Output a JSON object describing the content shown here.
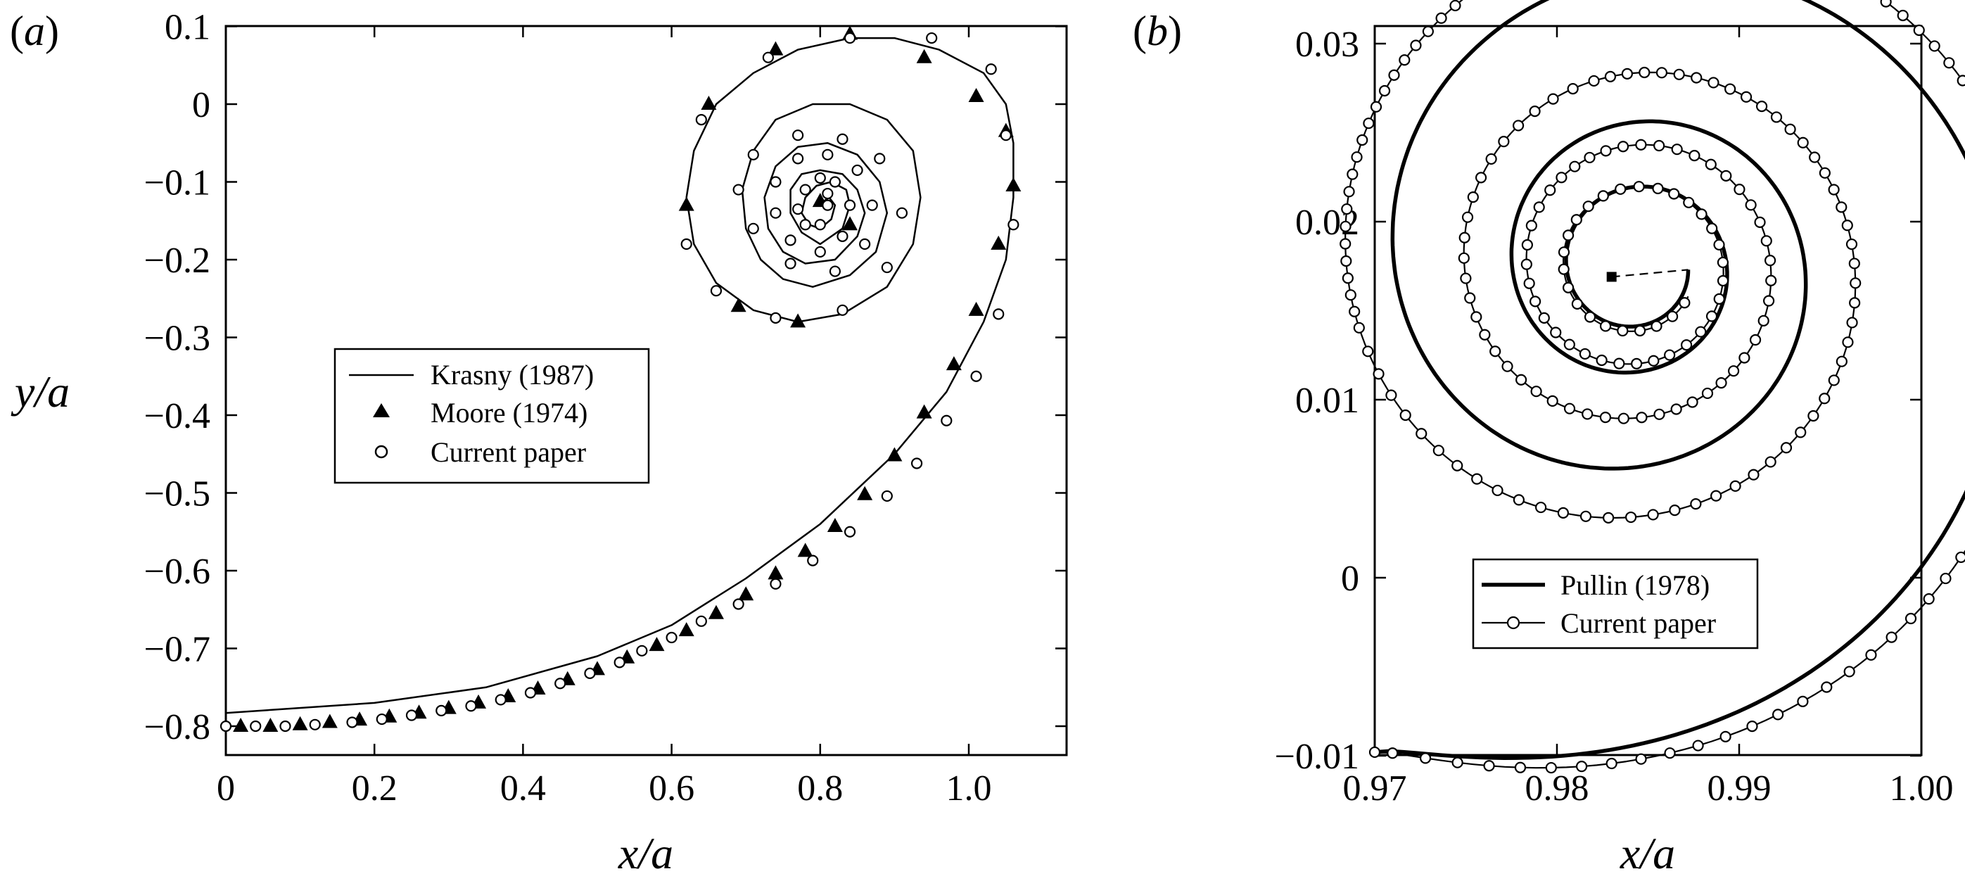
{
  "chart_data": [
    {
      "panel": "(a)",
      "type": "line",
      "xlabel": "x/a",
      "ylabel": "y/a",
      "xlim": [
        0,
        1.1
      ],
      "ylim": [
        -0.85,
        0.1
      ],
      "xticks": [
        0,
        0.2,
        0.4,
        0.6,
        0.8,
        1.0
      ],
      "xtick_labels": [
        "0",
        "0.2",
        "0.4",
        "0.6",
        "0.8",
        "1.0"
      ],
      "yticks": [
        0.1,
        0,
        -0.1,
        -0.2,
        -0.3,
        -0.4,
        -0.5,
        -0.6,
        -0.7,
        -0.8
      ],
      "ytick_labels": [
        "0.1",
        "0",
        "−0.1",
        "−0.2",
        "−0.3",
        "−0.4",
        "−0.5",
        "−0.6",
        "−0.7",
        "−0.8"
      ],
      "legend": {
        "location": "center-left",
        "entries": [
          "Krasny (1987)",
          "Moore (1974)",
          "Current paper"
        ]
      },
      "series": [
        {
          "name": "Krasny (1987)",
          "style": "line",
          "x": [
            0,
            0.2,
            0.35,
            0.5,
            0.6,
            0.7,
            0.8,
            0.9,
            0.97,
            1.02,
            1.05,
            1.06,
            1.06,
            1.05,
            1.02,
            0.96,
            0.9,
            0.84,
            0.77,
            0.71,
            0.66,
            0.63,
            0.62,
            0.63,
            0.66,
            0.71,
            0.77,
            0.83,
            0.89,
            0.925,
            0.935,
            0.925,
            0.89,
            0.84,
            0.79,
            0.74,
            0.71,
            0.695,
            0.7,
            0.72,
            0.75,
            0.79,
            0.84,
            0.875,
            0.89,
            0.88,
            0.85,
            0.81,
            0.77,
            0.74,
            0.725,
            0.73,
            0.75,
            0.78,
            0.82,
            0.85,
            0.86,
            0.85,
            0.83,
            0.8,
            0.775,
            0.76,
            0.76,
            0.775,
            0.8,
            0.83,
            0.84,
            0.835,
            0.815,
            0.795,
            0.78,
            0.775,
            0.785,
            0.8,
            0.815,
            0.82,
            0.812,
            0.8
          ],
          "y": [
            -0.783,
            -0.77,
            -0.75,
            -0.71,
            -0.67,
            -0.61,
            -0.54,
            -0.45,
            -0.37,
            -0.28,
            -0.2,
            -0.12,
            -0.05,
            0.0,
            0.04,
            0.07,
            0.085,
            0.085,
            0.07,
            0.04,
            0.0,
            -0.06,
            -0.12,
            -0.18,
            -0.23,
            -0.265,
            -0.28,
            -0.27,
            -0.235,
            -0.18,
            -0.12,
            -0.06,
            -0.02,
            0.0,
            0.0,
            -0.02,
            -0.06,
            -0.11,
            -0.16,
            -0.2,
            -0.225,
            -0.235,
            -0.22,
            -0.19,
            -0.14,
            -0.1,
            -0.065,
            -0.05,
            -0.055,
            -0.08,
            -0.12,
            -0.16,
            -0.19,
            -0.205,
            -0.2,
            -0.17,
            -0.14,
            -0.11,
            -0.09,
            -0.085,
            -0.09,
            -0.11,
            -0.14,
            -0.165,
            -0.18,
            -0.16,
            -0.13,
            -0.11,
            -0.1,
            -0.105,
            -0.12,
            -0.14,
            -0.155,
            -0.16,
            -0.148,
            -0.13,
            -0.12,
            -0.128
          ]
        },
        {
          "name": "Moore (1974)",
          "style": "triangle",
          "x": [
            0.02,
            0.06,
            0.1,
            0.14,
            0.18,
            0.22,
            0.26,
            0.3,
            0.34,
            0.38,
            0.42,
            0.46,
            0.5,
            0.54,
            0.58,
            0.62,
            0.66,
            0.7,
            0.74,
            0.78,
            0.82,
            0.86,
            0.9,
            0.94,
            0.98,
            1.01,
            1.04,
            1.06,
            1.05,
            1.01,
            0.94,
            0.84,
            0.74,
            0.65,
            0.62,
            0.69,
            0.77,
            0.84,
            0.8
          ],
          "y": [
            -0.8,
            -0.8,
            -0.798,
            -0.795,
            -0.792,
            -0.788,
            -0.783,
            -0.777,
            -0.77,
            -0.762,
            -0.752,
            -0.74,
            -0.727,
            -0.712,
            -0.696,
            -0.677,
            -0.655,
            -0.631,
            -0.604,
            -0.575,
            -0.543,
            -0.502,
            -0.452,
            -0.397,
            -0.335,
            -0.265,
            -0.18,
            -0.105,
            -0.035,
            0.01,
            0.06,
            0.09,
            0.07,
            0.0,
            -0.13,
            -0.26,
            -0.28,
            -0.155,
            -0.125
          ]
        },
        {
          "name": "Current paper",
          "style": "circle",
          "x": [
            0,
            0.04,
            0.08,
            0.12,
            0.17,
            0.21,
            0.25,
            0.29,
            0.33,
            0.37,
            0.41,
            0.45,
            0.49,
            0.53,
            0.56,
            0.6,
            0.64,
            0.69,
            0.74,
            0.79,
            0.84,
            0.89,
            0.93,
            0.97,
            1.01,
            1.04,
            1.06,
            1.05,
            1.03,
            0.95,
            0.84,
            0.73,
            0.64,
            0.62,
            0.66,
            0.74,
            0.83,
            0.89,
            0.91,
            0.88,
            0.83,
            0.77,
            0.71,
            0.69,
            0.71,
            0.76,
            0.82,
            0.86,
            0.87,
            0.85,
            0.81,
            0.77,
            0.74,
            0.74,
            0.76,
            0.8,
            0.83,
            0.84,
            0.82,
            0.8,
            0.78,
            0.77,
            0.78,
            0.8,
            0.81,
            0.81
          ],
          "y": [
            -0.8,
            -0.8,
            -0.8,
            -0.798,
            -0.795,
            -0.791,
            -0.786,
            -0.78,
            -0.774,
            -0.766,
            -0.757,
            -0.745,
            -0.732,
            -0.718,
            -0.703,
            -0.686,
            -0.665,
            -0.643,
            -0.617,
            -0.587,
            -0.55,
            -0.504,
            -0.462,
            -0.407,
            -0.35,
            -0.27,
            -0.155,
            -0.04,
            0.045,
            0.085,
            0.085,
            0.06,
            -0.02,
            -0.18,
            -0.24,
            -0.275,
            -0.265,
            -0.21,
            -0.14,
            -0.07,
            -0.045,
            -0.04,
            -0.065,
            -0.11,
            -0.16,
            -0.205,
            -0.215,
            -0.18,
            -0.13,
            -0.085,
            -0.065,
            -0.07,
            -0.1,
            -0.14,
            -0.175,
            -0.19,
            -0.17,
            -0.13,
            -0.1,
            -0.095,
            -0.11,
            -0.135,
            -0.155,
            -0.155,
            -0.13,
            -0.115
          ]
        }
      ]
    },
    {
      "panel": "(b)",
      "type": "line",
      "xlabel": "x/a",
      "ylabel": "",
      "xlim": [
        0.97,
        1.0
      ],
      "ylim": [
        -0.01,
        0.031
      ],
      "xticks": [
        0.97,
        0.98,
        0.99,
        1.0
      ],
      "xtick_labels": [
        "0.97",
        "0.98",
        "0.99",
        "1.00"
      ],
      "yticks": [
        0.03,
        0.02,
        0.01,
        0,
        -0.01
      ],
      "ytick_labels": [
        "0.03",
        "0.02",
        "0.01",
        "0",
        "−0.01"
      ],
      "legend": {
        "location": "lower-left",
        "entries": [
          "Pullin (1978)",
          "Current paper"
        ]
      },
      "center_point": {
        "x": 0.983,
        "y": 0.0169
      },
      "series": [
        {
          "name": "Pullin (1978)",
          "style": "thick-line",
          "spiral": {
            "center": [
              0.9843,
              0.0175
            ],
            "start": [
              0.97,
              -0.0098
            ],
            "end": [
              0.9872,
              0.0173
            ],
            "turns": 3.2,
            "inner_radius": 0.0038
          }
        },
        {
          "name": "Current paper",
          "style": "line-circle",
          "spiral": {
            "center": [
              0.9843,
              0.0175
            ],
            "start": [
              0.97,
              -0.0098
            ],
            "end": [
              0.9872,
              0.0158
            ],
            "turns": 3.4,
            "inner_radius": 0.0035
          }
        }
      ]
    }
  ]
}
